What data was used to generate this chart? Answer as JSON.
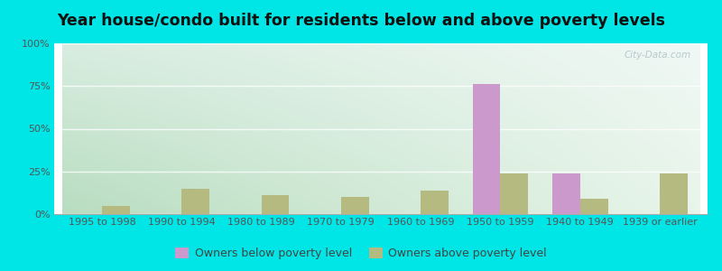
{
  "categories": [
    "1995 to 1998",
    "1990 to 1994",
    "1980 to 1989",
    "1970 to 1979",
    "1960 to 1969",
    "1950 to 1959",
    "1940 to 1949",
    "1939 or earlier"
  ],
  "below_poverty": [
    0,
    0,
    0,
    0,
    0,
    76,
    24,
    0
  ],
  "above_poverty": [
    5,
    15,
    11,
    10,
    14,
    24,
    9,
    24
  ],
  "below_color": "#cc99cc",
  "above_color": "#b5bb80",
  "title": "Year house/condo built for residents below and above poverty levels",
  "ylim": [
    0,
    100
  ],
  "yticks": [
    0,
    25,
    50,
    75,
    100
  ],
  "ytick_labels": [
    "0%",
    "25%",
    "50%",
    "75%",
    "100%"
  ],
  "outer_background": "#00e5e5",
  "bar_width": 0.35,
  "legend_below": "Owners below poverty level",
  "legend_above": "Owners above poverty level",
  "title_fontsize": 12.5,
  "tick_fontsize": 8,
  "legend_fontsize": 9,
  "grad_topleft": "#d8ede0",
  "grad_topright": "#eef5f5",
  "grad_botleft": "#c8e8d0",
  "grad_botright": "#f0f8f0"
}
